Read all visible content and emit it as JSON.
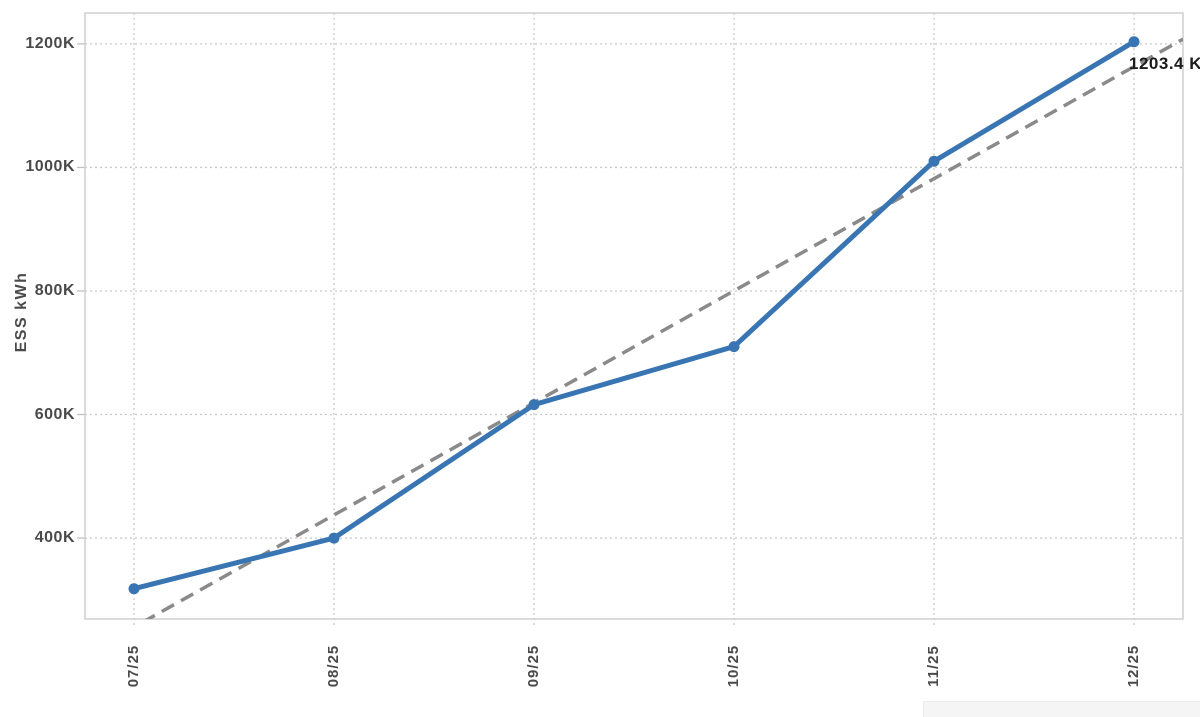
{
  "chart_data": {
    "type": "line",
    "title": "",
    "xlabel": "",
    "ylabel": "ESS kWh",
    "categories": [
      "07/25",
      "08/25",
      "09/25",
      "10/25",
      "11/25",
      "12/25"
    ],
    "series": [
      {
        "name": "ESS kWh",
        "values": [
          318,
          400,
          616,
          710,
          1010,
          1203.4
        ],
        "color": "#3875b2",
        "style": "solid",
        "markers": true
      },
      {
        "name": "trend",
        "fit": "linear-regression",
        "color": "#8a8a8a",
        "style": "dashed"
      }
    ],
    "y_ticks": [
      "400K",
      "600K",
      "800K",
      "1000K",
      "1200K"
    ],
    "y_tick_values": [
      400,
      600,
      800,
      1000,
      1200
    ],
    "ylim": [
      269,
      1250
    ],
    "grid": "dotted",
    "legend": "none",
    "annotations": [
      {
        "text": "1203.4 K",
        "attached_to_category": "12/25",
        "attached_to_value": 1203.4
      }
    ]
  },
  "colors": {
    "series_line": "#3875b2",
    "trendline": "#8a8a8a",
    "gridline": "#c9c9c9",
    "plot_border": "#cfcfcf",
    "tick_mark": "#c0c0c0",
    "tick_text": "#4a4a4a",
    "annotation_text": "#1b1b1b",
    "background": "#ffffff",
    "bottom_bar": "#f5f5f5"
  }
}
